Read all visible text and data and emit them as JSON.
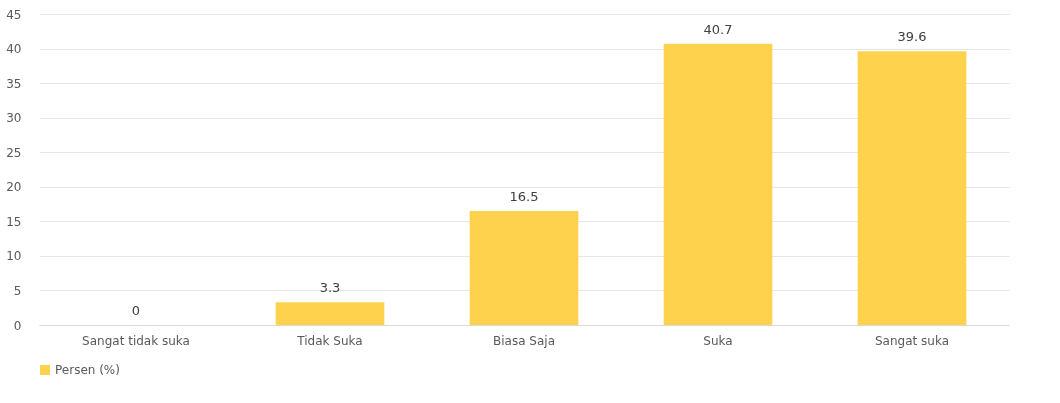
{
  "chart_data": {
    "type": "bar",
    "categories": [
      "Sangat tidak suka",
      "Tidak Suka",
      "Biasa Saja",
      "Suka",
      "Sangat suka"
    ],
    "series": [
      {
        "name": "Persen (%)",
        "color": "#ffd24d",
        "values": [
          0,
          3.3,
          16.5,
          40.7,
          39.6
        ]
      }
    ],
    "ylim": [
      0,
      45
    ],
    "yticks": [
      0,
      5,
      10,
      15,
      20,
      25,
      30,
      35,
      40,
      45
    ],
    "grid": "y",
    "legend": "bottom",
    "data_labels": true
  }
}
